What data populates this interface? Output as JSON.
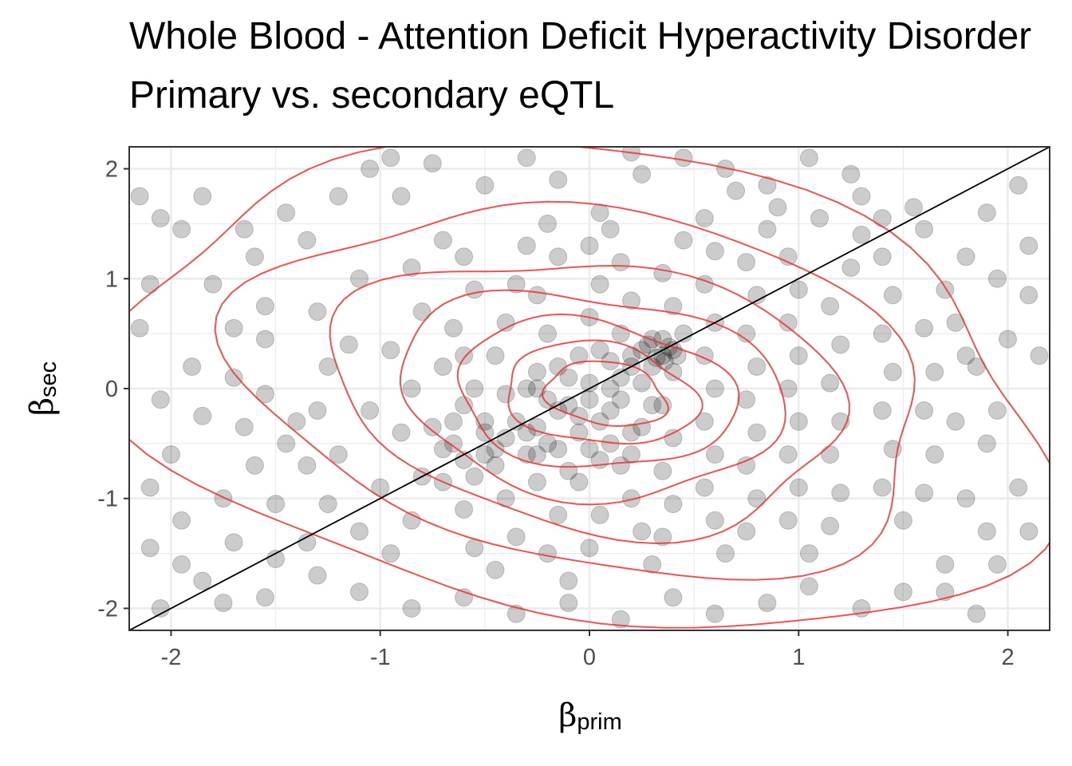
{
  "title_line1": "Whole Blood - Attention Deficit Hyperactivity Disorder",
  "title_line2": "Primary vs. secondary eQTL",
  "chart_data": {
    "type": "scatter",
    "title": "Whole Blood - Attention Deficit Hyperactivity Disorder / Primary vs. secondary eQTL",
    "xlabel": {
      "symbol": "β",
      "subscript": "prim"
    },
    "ylabel": {
      "symbol": "β",
      "subscript": "sec"
    },
    "xlim": [
      -2.2,
      2.2
    ],
    "ylim": [
      -2.2,
      2.2
    ],
    "x_ticks": [
      -2,
      -1,
      0,
      1,
      2
    ],
    "y_ticks": [
      -2,
      -1,
      0,
      1,
      2
    ],
    "x_tick_labels": [
      "-2",
      "-1",
      "0",
      "1",
      "2"
    ],
    "y_tick_labels": [
      "-2",
      "-1",
      "0",
      "1",
      "2"
    ],
    "grid": true,
    "point_color": "#000000",
    "point_opacity": 0.2,
    "identity_line": {
      "slope": 1,
      "intercept": 0,
      "color": "#000000"
    },
    "contour_color": "#ee3333",
    "density_contours": [
      {
        "level": 1,
        "cx": 0.0,
        "cy": 0.0,
        "rx": 1.95,
        "ry": 2.45,
        "angle_deg": 45
      },
      {
        "level": 2,
        "cx": 0.0,
        "cy": 0.0,
        "rx": 1.45,
        "ry": 1.85,
        "angle_deg": 42
      },
      {
        "level": 3,
        "cx": 0.0,
        "cy": -0.05,
        "rx": 1.1,
        "ry": 1.35,
        "angle_deg": 42
      },
      {
        "level": 4,
        "cx": 0.0,
        "cy": -0.05,
        "rx": 0.85,
        "ry": 1.0,
        "angle_deg": 42
      },
      {
        "level": 5,
        "cx": 0.02,
        "cy": -0.05,
        "rx": 0.62,
        "ry": 0.72,
        "angle_deg": 42
      },
      {
        "level": 6,
        "cx": 0.05,
        "cy": -0.05,
        "rx": 0.42,
        "ry": 0.5,
        "angle_deg": 42
      },
      {
        "level": 7,
        "cx": 0.08,
        "cy": -0.05,
        "rx": 0.26,
        "ry": 0.32,
        "angle_deg": 42
      }
    ],
    "points": [
      [
        -2.05,
        1.55
      ],
      [
        -2.15,
        1.75
      ],
      [
        -1.95,
        1.45
      ],
      [
        -2.1,
        0.95
      ],
      [
        -1.9,
        0.2
      ],
      [
        -2.05,
        -0.1
      ],
      [
        -1.85,
        -0.25
      ],
      [
        -2.0,
        -0.6
      ],
      [
        -2.1,
        -0.9
      ],
      [
        -1.95,
        -1.2
      ],
      [
        -1.75,
        -1.0
      ],
      [
        -1.6,
        -0.7
      ],
      [
        -1.7,
        0.1
      ],
      [
        -1.55,
        0.45
      ],
      [
        -1.45,
        1.6
      ],
      [
        -1.6,
        1.2
      ],
      [
        -1.35,
        1.35
      ],
      [
        -1.2,
        1.75
      ],
      [
        -1.05,
        2.0
      ],
      [
        -0.9,
        1.75
      ],
      [
        -0.75,
        2.05
      ],
      [
        -0.5,
        1.85
      ],
      [
        -0.3,
        2.1
      ],
      [
        -0.15,
        1.9
      ],
      [
        0.05,
        1.6
      ],
      [
        0.25,
        1.95
      ],
      [
        0.45,
        2.1
      ],
      [
        0.65,
        2.0
      ],
      [
        0.85,
        1.85
      ],
      [
        1.05,
        2.1
      ],
      [
        1.25,
        1.95
      ],
      [
        1.4,
        1.55
      ],
      [
        1.6,
        1.45
      ],
      [
        1.8,
        1.2
      ],
      [
        1.95,
        1.0
      ],
      [
        2.1,
        0.85
      ],
      [
        2.0,
        0.45
      ],
      [
        1.85,
        0.2
      ],
      [
        1.75,
        -0.3
      ],
      [
        1.9,
        -0.5
      ],
      [
        2.05,
        -0.9
      ],
      [
        1.9,
        -1.3
      ],
      [
        1.7,
        -1.6
      ],
      [
        1.5,
        -1.85
      ],
      [
        1.3,
        -2.0
      ],
      [
        1.05,
        -1.8
      ],
      [
        0.85,
        -1.95
      ],
      [
        0.6,
        -2.05
      ],
      [
        0.4,
        -1.9
      ],
      [
        0.15,
        -2.1
      ],
      [
        -0.1,
        -1.95
      ],
      [
        -0.35,
        -2.05
      ],
      [
        -0.6,
        -1.9
      ],
      [
        -0.85,
        -2.0
      ],
      [
        -1.1,
        -1.85
      ],
      [
        -1.3,
        -1.7
      ],
      [
        -1.5,
        -1.55
      ],
      [
        -1.7,
        -1.4
      ],
      [
        -1.85,
        -1.75
      ],
      [
        -2.05,
        -2.0
      ],
      [
        -1.4,
        -0.3
      ],
      [
        -1.25,
        0.2
      ],
      [
        -1.3,
        0.7
      ],
      [
        -1.1,
        1.0
      ],
      [
        -1.15,
        0.4
      ],
      [
        -1.05,
        -0.2
      ],
      [
        -1.2,
        -0.6
      ],
      [
        -1.0,
        -0.9
      ],
      [
        -1.1,
        -1.3
      ],
      [
        -0.95,
        -1.5
      ],
      [
        -0.85,
        -1.2
      ],
      [
        -0.8,
        -0.8
      ],
      [
        -0.9,
        -0.4
      ],
      [
        -0.85,
        0.0
      ],
      [
        -0.95,
        0.35
      ],
      [
        -0.8,
        0.7
      ],
      [
        -0.85,
        1.1
      ],
      [
        -0.7,
        1.35
      ],
      [
        -0.6,
        1.2
      ],
      [
        -0.55,
        0.9
      ],
      [
        -0.65,
        0.55
      ],
      [
        -0.7,
        0.2
      ],
      [
        -0.6,
        -0.15
      ],
      [
        -0.65,
        -0.5
      ],
      [
        -0.7,
        -0.85
      ],
      [
        -0.6,
        -1.1
      ],
      [
        -0.55,
        -1.45
      ],
      [
        -0.45,
        -1.65
      ],
      [
        -0.35,
        -1.35
      ],
      [
        -0.4,
        -1.0
      ],
      [
        -0.45,
        -0.7
      ],
      [
        -0.5,
        -0.4
      ],
      [
        -0.4,
        -0.05
      ],
      [
        -0.45,
        0.3
      ],
      [
        -0.4,
        0.6
      ],
      [
        -0.35,
        0.95
      ],
      [
        -0.3,
        1.3
      ],
      [
        -0.2,
        1.5
      ],
      [
        -0.15,
        1.2
      ],
      [
        -0.25,
        0.85
      ],
      [
        -0.2,
        0.5
      ],
      [
        -0.25,
        0.15
      ],
      [
        -0.15,
        -0.2
      ],
      [
        -0.2,
        -0.5
      ],
      [
        -0.25,
        -0.85
      ],
      [
        -0.15,
        -1.15
      ],
      [
        -0.2,
        -1.5
      ],
      [
        -0.1,
        -1.75
      ],
      [
        0.0,
        -1.45
      ],
      [
        0.05,
        -1.15
      ],
      [
        -0.05,
        -0.85
      ],
      [
        0.0,
        -0.55
      ],
      [
        -0.05,
        -0.25
      ],
      [
        0.0,
        0.05
      ],
      [
        0.05,
        0.35
      ],
      [
        0.0,
        0.65
      ],
      [
        0.05,
        0.95
      ],
      [
        0.0,
        1.3
      ],
      [
        0.1,
        1.45
      ],
      [
        0.15,
        1.15
      ],
      [
        0.2,
        0.8
      ],
      [
        0.15,
        0.5
      ],
      [
        0.2,
        0.2
      ],
      [
        0.15,
        -0.1
      ],
      [
        0.2,
        -0.4
      ],
      [
        0.15,
        -0.7
      ],
      [
        0.2,
        -1.0
      ],
      [
        0.25,
        -1.3
      ],
      [
        0.3,
        -1.6
      ],
      [
        0.35,
        -1.35
      ],
      [
        0.4,
        -1.05
      ],
      [
        0.35,
        -0.75
      ],
      [
        0.4,
        -0.45
      ],
      [
        0.35,
        -0.15
      ],
      [
        0.4,
        0.15
      ],
      [
        0.35,
        0.45
      ],
      [
        0.4,
        0.75
      ],
      [
        0.35,
        1.05
      ],
      [
        0.45,
        1.35
      ],
      [
        0.55,
        1.55
      ],
      [
        0.6,
        1.25
      ],
      [
        0.55,
        0.95
      ],
      [
        0.6,
        0.6
      ],
      [
        0.55,
        0.3
      ],
      [
        0.6,
        0.0
      ],
      [
        0.55,
        -0.3
      ],
      [
        0.6,
        -0.6
      ],
      [
        0.55,
        -0.9
      ],
      [
        0.6,
        -1.2
      ],
      [
        0.65,
        -1.5
      ],
      [
        0.75,
        -1.3
      ],
      [
        0.8,
        -1.0
      ],
      [
        0.75,
        -0.7
      ],
      [
        0.8,
        -0.4
      ],
      [
        0.75,
        -0.1
      ],
      [
        0.8,
        0.2
      ],
      [
        0.75,
        0.5
      ],
      [
        0.8,
        0.85
      ],
      [
        0.75,
        1.15
      ],
      [
        0.85,
        1.45
      ],
      [
        0.95,
        1.2
      ],
      [
        1.0,
        0.9
      ],
      [
        0.95,
        0.6
      ],
      [
        1.0,
        0.3
      ],
      [
        0.95,
        0.0
      ],
      [
        1.0,
        -0.3
      ],
      [
        0.95,
        -0.6
      ],
      [
        1.0,
        -0.9
      ],
      [
        0.95,
        -1.2
      ],
      [
        1.05,
        -1.5
      ],
      [
        1.15,
        -1.25
      ],
      [
        1.2,
        -0.95
      ],
      [
        1.15,
        -0.6
      ],
      [
        1.2,
        -0.3
      ],
      [
        1.15,
        0.05
      ],
      [
        1.2,
        0.4
      ],
      [
        1.15,
        0.75
      ],
      [
        1.25,
        1.1
      ],
      [
        1.3,
        1.4
      ],
      [
        1.4,
        1.2
      ],
      [
        1.45,
        0.85
      ],
      [
        1.4,
        0.5
      ],
      [
        1.45,
        0.15
      ],
      [
        1.4,
        -0.2
      ],
      [
        1.45,
        -0.55
      ],
      [
        1.4,
        -0.9
      ],
      [
        1.5,
        -1.2
      ],
      [
        1.6,
        -0.95
      ],
      [
        1.65,
        -0.6
      ],
      [
        1.6,
        -0.2
      ],
      [
        1.65,
        0.15
      ],
      [
        1.6,
        0.55
      ],
      [
        1.7,
        0.9
      ],
      [
        1.75,
        0.6
      ],
      [
        1.8,
        0.3
      ],
      [
        1.55,
        1.65
      ],
      [
        1.3,
        1.75
      ],
      [
        1.1,
        1.55
      ],
      [
        0.9,
        1.65
      ],
      [
        0.7,
        1.8
      ],
      [
        -0.6,
        0.3
      ],
      [
        -0.55,
        0.0
      ],
      [
        -0.5,
        -0.3
      ],
      [
        -0.45,
        -0.55
      ],
      [
        -0.35,
        -0.3
      ],
      [
        -0.3,
        0.0
      ],
      [
        -0.25,
        -0.35
      ],
      [
        -0.3,
        -0.6
      ],
      [
        -0.2,
        -0.1
      ],
      [
        -0.1,
        0.1
      ],
      [
        -0.1,
        -0.15
      ],
      [
        -0.05,
        -0.4
      ],
      [
        0.0,
        -0.1
      ],
      [
        0.05,
        -0.3
      ],
      [
        0.1,
        0.0
      ],
      [
        0.1,
        -0.2
      ],
      [
        0.15,
        0.1
      ],
      [
        0.2,
        0.3
      ],
      [
        0.25,
        0.05
      ],
      [
        0.25,
        0.35
      ],
      [
        0.3,
        0.2
      ],
      [
        0.3,
        0.45
      ],
      [
        0.35,
        0.3
      ],
      [
        0.4,
        0.35
      ],
      [
        0.42,
        0.3
      ],
      [
        0.45,
        0.5
      ],
      [
        0.38,
        0.38
      ],
      [
        0.32,
        0.28
      ],
      [
        0.28,
        0.4
      ],
      [
        0.36,
        0.25
      ],
      [
        -0.65,
        -0.3
      ],
      [
        -0.7,
        -0.55
      ],
      [
        -0.75,
        -0.35
      ],
      [
        -0.6,
        -0.65
      ],
      [
        -0.55,
        -0.8
      ],
      [
        -0.5,
        -0.6
      ],
      [
        -0.4,
        -0.45
      ],
      [
        -0.3,
        -0.4
      ],
      [
        -0.25,
        -0.6
      ],
      [
        -0.15,
        -0.55
      ],
      [
        -0.1,
        -0.75
      ],
      [
        0.05,
        -0.65
      ],
      [
        0.1,
        -0.5
      ],
      [
        0.2,
        -0.6
      ],
      [
        0.25,
        -0.35
      ],
      [
        0.3,
        -0.15
      ],
      [
        0.1,
        0.25
      ],
      [
        -0.05,
        0.3
      ],
      [
        -0.15,
        0.2
      ],
      [
        -0.25,
        0.0
      ],
      [
        -1.55,
        -0.05
      ],
      [
        -1.65,
        -0.35
      ],
      [
        -1.5,
        -1.05
      ],
      [
        -1.35,
        -1.4
      ],
      [
        -1.25,
        -1.05
      ],
      [
        -1.35,
        -0.7
      ],
      [
        -1.45,
        -0.5
      ],
      [
        -1.3,
        -0.2
      ],
      [
        -1.55,
        0.75
      ],
      [
        -1.7,
        0.55
      ],
      [
        -1.8,
        0.95
      ],
      [
        -1.65,
        1.45
      ],
      [
        -1.85,
        1.75
      ],
      [
        -2.15,
        0.55
      ],
      [
        -2.1,
        -1.45
      ],
      [
        -1.95,
        -1.6
      ],
      [
        -1.75,
        -1.95
      ],
      [
        -1.55,
        -1.9
      ],
      [
        1.95,
        -1.6
      ],
      [
        2.1,
        -1.3
      ],
      [
        2.15,
        0.3
      ],
      [
        2.1,
        1.3
      ],
      [
        1.9,
        1.6
      ],
      [
        2.05,
        1.85
      ],
      [
        1.8,
        -1.0
      ],
      [
        1.95,
        -0.2
      ],
      [
        1.7,
        -1.85
      ],
      [
        1.85,
        -2.05
      ],
      [
        -0.95,
        2.1
      ],
      [
        0.2,
        2.15
      ]
    ]
  }
}
